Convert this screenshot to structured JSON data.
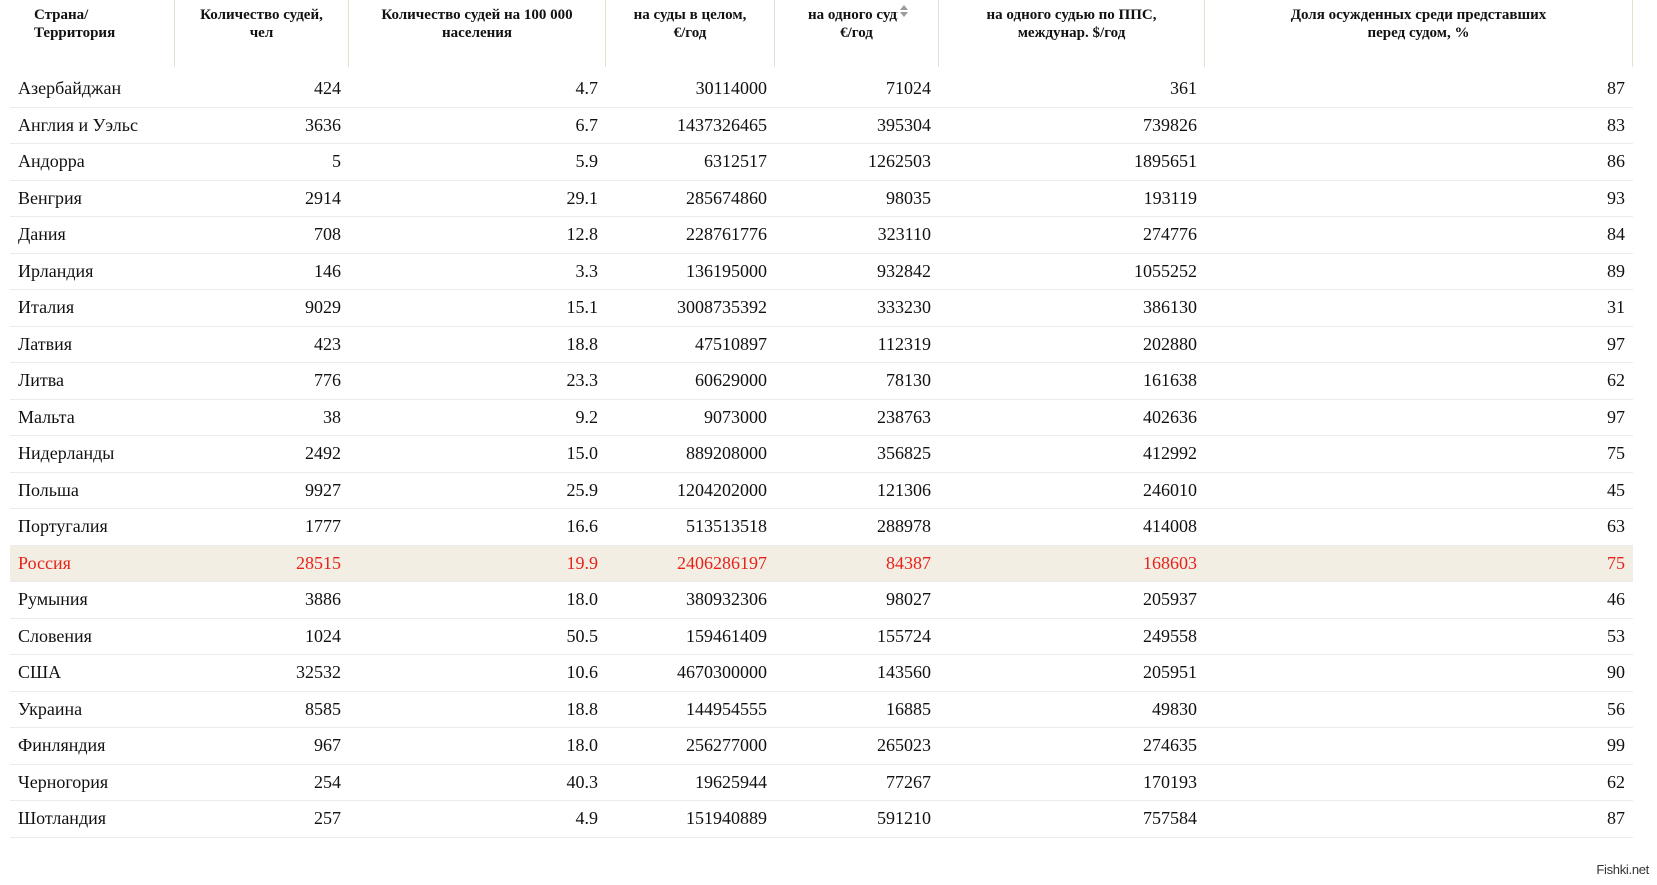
{
  "headers": [
    "Страна/\nТерритория",
    "Количество судей,\nчел",
    "Количество судей на 100 000\nнаселения",
    "на суды в целом,\n€/год",
    "на одного судь\n€/год",
    "на одного судью по ППС,\nмеждунар. $/год",
    "Доля осужденных среди представших\nперед судом, %"
  ],
  "sort_icon": "sort-arrows-icon",
  "highlight_color": "#e8221b",
  "highlight_bg": "#f2eee3",
  "rows": [
    [
      "Азербайджан",
      "424",
      "4.7",
      "30114000",
      "71024",
      "361",
      "87"
    ],
    [
      "Англия и Уэльс",
      "3636",
      "6.7",
      "1437326465",
      "395304",
      "739826",
      "83"
    ],
    [
      "Андорра",
      "5",
      "5.9",
      "6312517",
      "1262503",
      "1895651",
      "86"
    ],
    [
      "Венгрия",
      "2914",
      "29.1",
      "285674860",
      "98035",
      "193119",
      "93"
    ],
    [
      "Дания",
      "708",
      "12.8",
      "228761776",
      "323110",
      "274776",
      "84"
    ],
    [
      "Ирландия",
      "146",
      "3.3",
      "136195000",
      "932842",
      "1055252",
      "89"
    ],
    [
      "Италия",
      "9029",
      "15.1",
      "3008735392",
      "333230",
      "386130",
      "31"
    ],
    [
      "Латвия",
      "423",
      "18.8",
      "47510897",
      "112319",
      "202880",
      "97"
    ],
    [
      "Литва",
      "776",
      "23.3",
      "60629000",
      "78130",
      "161638",
      "62"
    ],
    [
      "Мальта",
      "38",
      "9.2",
      "9073000",
      "238763",
      "402636",
      "97"
    ],
    [
      "Нидерланды",
      "2492",
      "15.0",
      "889208000",
      "356825",
      "412992",
      "75"
    ],
    [
      "Польша",
      "9927",
      "25.9",
      "1204202000",
      "121306",
      "246010",
      "45"
    ],
    [
      "Португалия",
      "1777",
      "16.6",
      "513513518",
      "288978",
      "414008",
      "63"
    ],
    [
      "Россия",
      "28515",
      "19.9",
      "2406286197",
      "84387",
      "168603",
      "75"
    ],
    [
      "Румыния",
      "3886",
      "18.0",
      "380932306",
      "98027",
      "205937",
      "46"
    ],
    [
      "Словения",
      "1024",
      "50.5",
      "159461409",
      "155724",
      "249558",
      "53"
    ],
    [
      "США",
      "32532",
      "10.6",
      "4670300000",
      "143560",
      "205951",
      "90"
    ],
    [
      "Украина",
      "8585",
      "18.8",
      "144954555",
      "16885",
      "49830",
      "56"
    ],
    [
      "Финляндия",
      "967",
      "18.0",
      "256277000",
      "265023",
      "274635",
      "99"
    ],
    [
      "Черногория",
      "254",
      "40.3",
      "19625944",
      "77267",
      "170193",
      "62"
    ],
    [
      "Шотландия",
      "257",
      "4.9",
      "151940889",
      "591210",
      "757584",
      "87"
    ]
  ],
  "highlight_row": 13,
  "watermark": "Fishki.net"
}
